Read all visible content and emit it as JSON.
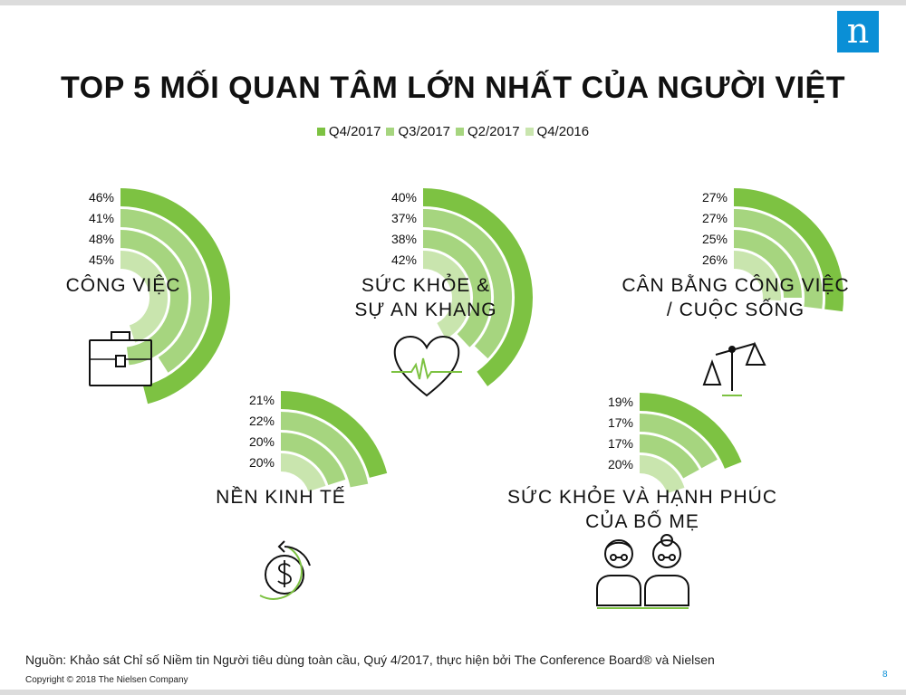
{
  "page": {
    "title": "TOP 5 MỐI QUAN TÂM LỚN NHẤT CỦA NGƯỜI VIỆT",
    "logo": "n",
    "source": "Nguồn: Khảo sát Chỉ số Niềm tin Người tiêu dùng toàn cầu, Quý 4/2017, thực hiện bởi The Conference Board® và Nielsen",
    "copyright": "Copyright © 2018 The Nielsen Company",
    "page_number": "8"
  },
  "colors": {
    "Q4/2017": "#7dc242",
    "Q3/2017": "#a6d57f",
    "Q2/2017": "#a6d57f",
    "Q4/2016": "#c9e5ae",
    "icon_accent": "#7dc242",
    "logo": "#0a8fd6"
  },
  "chart_data": {
    "type": "radial-bar",
    "series_order": [
      "Q4/2017",
      "Q3/2017",
      "Q2/2017",
      "Q4/2016"
    ],
    "legend_position": "top-center",
    "max_value": 50,
    "groups": [
      {
        "label": [
          "CÔNG VIỆC"
        ],
        "icon": "briefcase-icon",
        "values": {
          "Q4/2017": 46,
          "Q3/2017": 41,
          "Q2/2017": 48,
          "Q4/2016": 45
        }
      },
      {
        "label": [
          "SỨC KHỎE &",
          "SỰ AN KHANG"
        ],
        "icon": "heart-pulse-icon",
        "values": {
          "Q4/2017": 40,
          "Q3/2017": 37,
          "Q2/2017": 38,
          "Q4/2016": 42
        }
      },
      {
        "label": [
          "CÂN BẰNG CÔNG VIỆC",
          "/ CUỘC SỐNG"
        ],
        "icon": "balance-scale-icon",
        "values": {
          "Q4/2017": 27,
          "Q3/2017": 27,
          "Q2/2017": 25,
          "Q4/2016": 26
        }
      },
      {
        "label": [
          "NỀN KINH TẾ"
        ],
        "icon": "dollar-coin-icon",
        "values": {
          "Q4/2017": 21,
          "Q3/2017": 22,
          "Q2/2017": 20,
          "Q4/2016": 20
        }
      },
      {
        "label": [
          "SỨC KHỎE VÀ HẠNH PHÚC",
          "CỦA BỐ MẸ"
        ],
        "icon": "parents-icon",
        "values": {
          "Q4/2017": 19,
          "Q3/2017": 17,
          "Q2/2017": 17,
          "Q4/2016": 20
        }
      }
    ]
  }
}
